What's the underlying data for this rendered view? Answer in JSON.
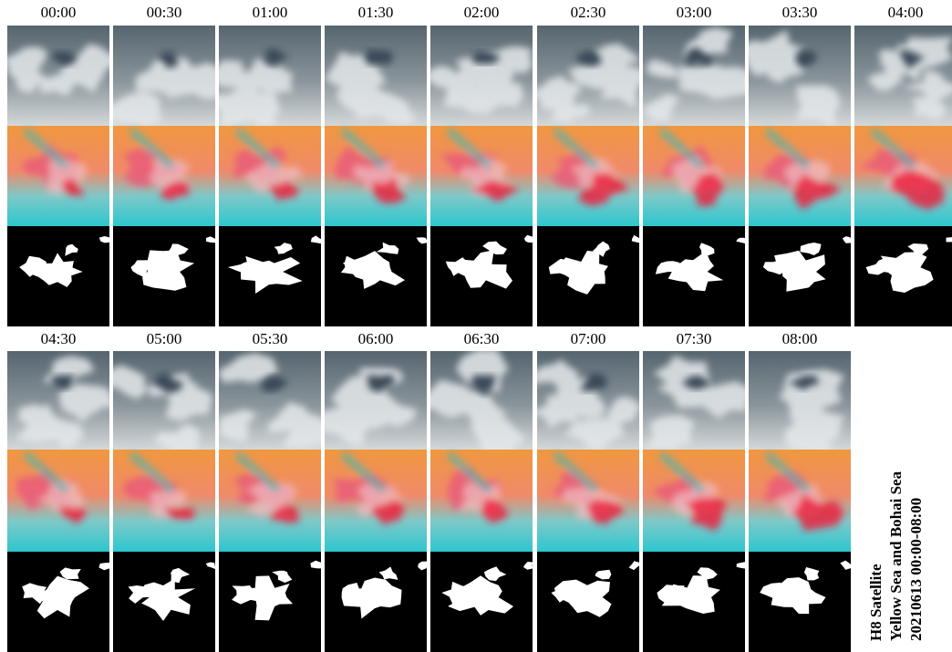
{
  "times": [
    "00:00",
    "00:30",
    "01:00",
    "01:30",
    "02:00",
    "02:30",
    "03:00",
    "03:30",
    "04:00",
    "04:30",
    "05:00",
    "05:30",
    "06:00",
    "06:30",
    "07:00",
    "07:30",
    "08:00"
  ],
  "caption": [
    "H8 Satellite",
    "Yellow Sea and Bohai Sea",
    "20210613 00:00-08:00"
  ]
}
